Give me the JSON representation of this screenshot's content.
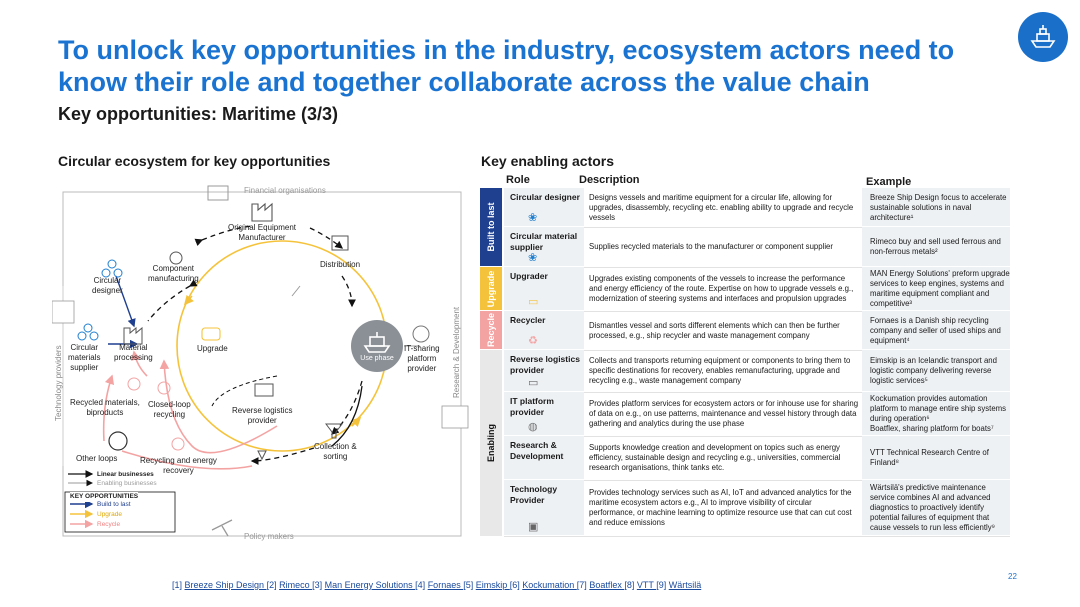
{
  "title": "To unlock key opportunities in the industry, ecosystem actors need to know their role and together collaborate across the value chain",
  "subtitle": "Key opportunities: Maritime (3/3)",
  "left_section_title": "Circular ecosystem for key opportunities",
  "right_section_title": "Key enabling actors",
  "diagram": {
    "financial": "Financial organisations",
    "oem": "Original Equipment\nManufacturer",
    "distribution": "Distribution",
    "component": "Component\nmanufacturing",
    "circular_designer": "Circular\ndesigner",
    "circular_supplier": "Circular\nmaterials\nsupplier",
    "material_processing": "Material\nprocessing",
    "upgrade": "Upgrade",
    "use_phase": "Use phase",
    "it_sharing": "IT-sharing\nplatform\nprovider",
    "recycled": "Recycled materials,\nbiproducts",
    "closed_loop": "Closed-loop\nrecycling",
    "reverse_logistics": "Reverse logistics\nprovider",
    "collection": "Collection &\nsorting",
    "other_loops": "Other loops",
    "recycling_energy": "Recycling and energy\nrecovery",
    "policy": "Policy makers",
    "tech_providers": "Technology providers",
    "rnd": "Research & Development",
    "legend_linear": "Linear businesses",
    "legend_enabling": "Enabling businesses",
    "legend_title": "KEY OPPORTUNITIES",
    "legend_build": "Build to last",
    "legend_upgrade": "Upgrade",
    "legend_recycle": "Recycle"
  },
  "table": {
    "headers": {
      "role": "Role",
      "description": "Description",
      "example": "Example"
    },
    "bands": {
      "build": "Built to last",
      "upgrade": "Upgrade",
      "recycle": "Recycle",
      "enabling": "Enabling"
    },
    "rows": [
      {
        "role": "Circular designer",
        "desc": "Designs vessels and maritime equipment for a circular life, allowing for upgrades, disassembly, recycling etc. enabling ability to upgrade and recycle vessels",
        "example": "Breeze Ship Design focus to accelerate sustainable solutions in naval architecture¹"
      },
      {
        "role": "Circular material supplier",
        "desc": "Supplies recycled materials to the manufacturer or component supplier",
        "example": "Rimeco buy and sell used ferrous and non-ferrous metals²"
      },
      {
        "role": "Upgrader",
        "desc": "Upgrades existing components of the vessels to increase the performance and energy efficiency of the route. Expertise on how to upgrade vessels e.g., modernization of steering systems and interfaces and propulsion upgrades",
        "example": "MAN Energy Solutions' preform upgrade services to keep engines, systems and maritime equipment compliant and competitive³"
      },
      {
        "role": "Recycler",
        "desc": "Dismantles vessel and sorts different elements which can then be further processed, e.g., ship recycler and waste management company",
        "example": "Fornaes is a Danish ship recycling company and seller of used ships and equipment⁴"
      },
      {
        "role": "Reverse logistics provider",
        "desc": "Collects and transports returning equipment or components to bring them to specific destinations for recovery, enables remanufacturing, upgrade and recycling e.g., waste management company",
        "example": "Eimskip is an Icelandic transport and logistic company delivering reverse logistic services⁵"
      },
      {
        "role": "IT platform provider",
        "desc": "Provides platform services for ecosystem actors or for inhouse use for sharing of data on e.g., on use patterns, maintenance and vessel history through data gathering and analytics during the use phase",
        "example": "Kockumation provides automation platform to manage entire ship systems during operation⁶\nBoatflex, sharing platform for boats⁷"
      },
      {
        "role": "Research & Development",
        "desc": "Supports knowledge creation and development on topics such as energy efficiency, sustainable design and recycling e.g., universities, commercial research organisations, think tanks etc.",
        "example": "VTT Technical Research Centre of Finland⁸"
      },
      {
        "role": "Technology Provider",
        "desc": "Provides technology services such as AI, IoT and advanced analytics for the maritime ecosystem actors e.g., AI to improve visibility of circular performance, or machine learning to optimize resource use that can cut cost and reduce emissions",
        "example": "Wärtsilä's predictive maintenance service combines AI and advanced diagnostics to proactively identify potential failures of equipment that cause vessels to run less efficiently⁹"
      }
    ]
  },
  "footer": {
    "refs": [
      "[1]",
      "Breeze Ship Design",
      "[2]",
      "Rimeco",
      "[3]",
      "Man Energy Solutions",
      "[4]",
      "Fornaes",
      "[5]",
      "Eimskip",
      "[6]",
      "Kockumation",
      "[7]",
      "Boatflex",
      "[8]",
      "VTT",
      "[9]",
      "Wärtsilä"
    ]
  },
  "page_number": "22",
  "colors": {
    "accent": "#1a73d0",
    "build": "#1f3f8f",
    "upgrade": "#f5c33b",
    "recycle": "#f4a3a3",
    "enabling": "#e8e8e8"
  }
}
